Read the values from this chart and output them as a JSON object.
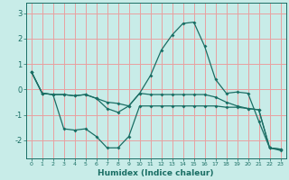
{
  "xlabel": "Humidex (Indice chaleur)",
  "background_color": "#c8ece8",
  "grid_color": "#e8a0a0",
  "line_color": "#1a6e64",
  "xlim": [
    -0.5,
    23.5
  ],
  "ylim": [
    -2.7,
    3.4
  ],
  "xticks": [
    0,
    1,
    2,
    3,
    4,
    5,
    6,
    7,
    8,
    9,
    10,
    11,
    12,
    13,
    14,
    15,
    16,
    17,
    18,
    19,
    20,
    21,
    22,
    23
  ],
  "yticks": [
    -2,
    -1,
    0,
    1,
    2,
    3
  ],
  "series1_x": [
    0,
    1,
    2,
    3,
    4,
    5,
    6,
    7,
    8,
    9,
    10,
    11,
    12,
    13,
    14,
    15,
    16,
    17,
    18,
    19,
    20,
    21,
    22,
    23
  ],
  "series1_y": [
    0.7,
    -0.15,
    -0.2,
    -0.2,
    -0.25,
    -0.2,
    -0.35,
    -0.5,
    -0.55,
    -0.65,
    -0.15,
    0.55,
    1.55,
    2.15,
    2.6,
    2.65,
    1.7,
    0.4,
    -0.15,
    -0.1,
    -0.15,
    -1.25,
    -2.3,
    -2.35
  ],
  "series2_x": [
    0,
    1,
    2,
    3,
    4,
    5,
    6,
    7,
    8,
    9,
    10,
    11,
    12,
    13,
    14,
    15,
    16,
    17,
    18,
    19,
    20,
    21,
    22,
    23
  ],
  "series2_y": [
    0.7,
    -0.15,
    -0.2,
    -1.55,
    -1.6,
    -1.55,
    -1.85,
    -2.3,
    -2.3,
    -1.85,
    -0.65,
    -0.65,
    -0.65,
    -0.65,
    -0.65,
    -0.65,
    -0.65,
    -0.65,
    -0.7,
    -0.7,
    -0.75,
    -0.8,
    -2.3,
    -2.4
  ],
  "series3_x": [
    0,
    1,
    2,
    3,
    4,
    5,
    6,
    7,
    8,
    9,
    10,
    11,
    12,
    13,
    14,
    15,
    16,
    17,
    18,
    19,
    20,
    21,
    22,
    23
  ],
  "series3_y": [
    0.7,
    -0.15,
    -0.2,
    -0.2,
    -0.25,
    -0.2,
    -0.35,
    -0.75,
    -0.9,
    -0.65,
    -0.15,
    -0.2,
    -0.2,
    -0.2,
    -0.2,
    -0.2,
    -0.2,
    -0.3,
    -0.5,
    -0.65,
    -0.75,
    -0.8,
    -2.3,
    -2.35
  ]
}
